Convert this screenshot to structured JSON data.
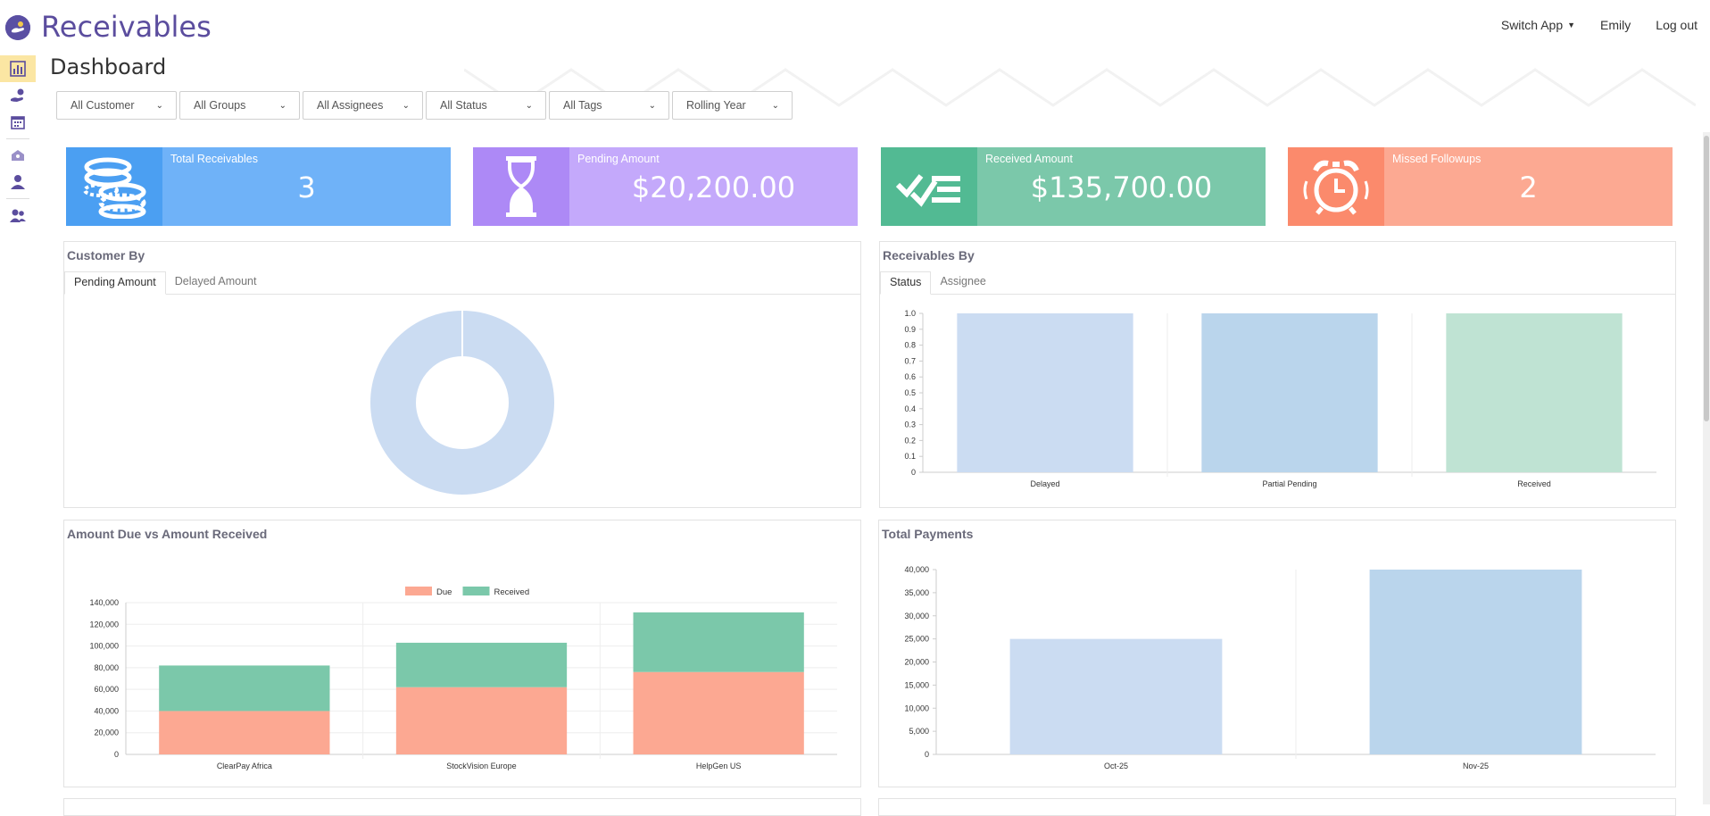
{
  "app": {
    "title": "Receivables"
  },
  "topnav": {
    "switch_app": "Switch App",
    "user": "Emily",
    "logout": "Log out"
  },
  "sidebar": {
    "items": [
      {
        "icon": "chart-icon",
        "active": true
      },
      {
        "icon": "hand-money-icon",
        "active": false
      },
      {
        "icon": "calendar-icon",
        "active": false
      },
      {
        "icon": "home-icon",
        "active": false
      },
      {
        "icon": "user-icon",
        "active": false
      },
      {
        "icon": "users-icon",
        "active": false
      }
    ]
  },
  "page": {
    "title": "Dashboard"
  },
  "filters": [
    "All Customer",
    "All Groups",
    "All Assignees",
    "All Status",
    "All Tags",
    "Rolling Year"
  ],
  "cards": [
    {
      "label": "Total Receivables",
      "value": "3",
      "icon": "coins-icon",
      "color": "#6fb2f8",
      "icon_bg": "#4b9ff2"
    },
    {
      "label": "Pending Amount",
      "value": "$20,200.00",
      "icon": "hourglass-icon",
      "color": "#c4a9fb",
      "icon_bg": "#ad89f6"
    },
    {
      "label": "Received Amount",
      "value": "$135,700.00",
      "icon": "checklist-icon",
      "color": "#7bc8aa",
      "icon_bg": "#52ba93"
    },
    {
      "label": "Missed Followups",
      "value": "2",
      "icon": "alarm-clock-icon",
      "color": "#fca992",
      "icon_bg": "#fb8a6c"
    }
  ],
  "panels": {
    "customer_by": {
      "title": "Customer By",
      "tabs": [
        "Pending Amount",
        "Delayed Amount"
      ]
    },
    "receivables_by": {
      "title": "Receivables By",
      "tabs": [
        "Status",
        "Assignee"
      ]
    },
    "due_vs_received": {
      "title": "Amount Due vs Amount Received"
    },
    "total_payments": {
      "title": "Total Payments"
    }
  },
  "chart_data": [
    {
      "type": "pie",
      "title": "Customer By",
      "labels": [
        ""
      ],
      "values": [
        1
      ],
      "colors": [
        "#cbdcf2"
      ]
    },
    {
      "type": "bar",
      "title": "Receivables By",
      "categories": [
        "Delayed",
        "Partial Pending",
        "Received"
      ],
      "values": [
        1,
        1,
        1
      ],
      "colors": [
        "#cbdcf2",
        "#bad5ec",
        "#bfe3d3"
      ],
      "ylim": [
        0,
        1.0
      ],
      "yticks": [
        "0",
        "0.1",
        "0.2",
        "0.3",
        "0.4",
        "0.5",
        "0.6",
        "0.7",
        "0.8",
        "0.9",
        "1.0"
      ]
    },
    {
      "type": "bar",
      "stacked": true,
      "title": "Amount Due vs Amount Received",
      "categories": [
        "ClearPay Africa",
        "StockVision Europe",
        "HelpGen US"
      ],
      "series": [
        {
          "name": "Due",
          "values": [
            40000,
            62000,
            76000
          ],
          "color": "#fca892"
        },
        {
          "name": "Received",
          "values": [
            42000,
            41000,
            55000
          ],
          "color": "#7bc8aa"
        }
      ],
      "ylim": [
        0,
        140000
      ],
      "yticks": [
        "0",
        "20,000",
        "40,000",
        "60,000",
        "80,000",
        "100,000",
        "120,000",
        "140,000"
      ],
      "legend": "top"
    },
    {
      "type": "bar",
      "title": "Total Payments",
      "categories": [
        "Oct-25",
        "Nov-25"
      ],
      "values": [
        25000,
        40000
      ],
      "colors": [
        "#cbdcf2",
        "#bad5ec"
      ],
      "ylim": [
        0,
        40000
      ],
      "yticks": [
        "0",
        "5,000",
        "10,000",
        "15,000",
        "20,000",
        "25,000",
        "30,000",
        "35,000",
        "40,000"
      ]
    }
  ]
}
